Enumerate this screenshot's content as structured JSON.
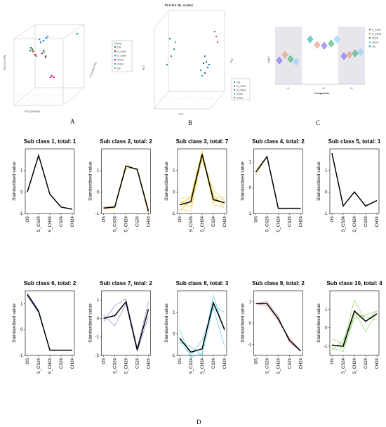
{
  "panel_labels": [
    "A",
    "B",
    "C",
    "D"
  ],
  "chart_data": [
    {
      "panel": "A",
      "type": "scatter",
      "x_axis_label": "PC1 (20.80%)",
      "y_axis_label": "PC3 (10.97%)",
      "z_axis_label": "PC2 (16.47%)",
      "legend_title": "Group",
      "legend": [
        "OS",
        "S_CS24",
        "S_CH24",
        "CS24",
        "CH24",
        "QC"
      ],
      "colors": [
        "#2e8b57",
        "#b22222",
        "#1e90ff",
        "#ff1493",
        "#20b2aa",
        "#999999"
      ]
    },
    {
      "panel": "B",
      "type": "scatter",
      "title": "PLS-DA 3D_scatter",
      "x_axis_label": "PC1",
      "y_axis_label": "PC3",
      "z_axis_label": "PC2",
      "legend": [
        "OS",
        "S_CS24",
        "S_CH24",
        "CS24",
        "CH24"
      ],
      "colors": [
        "#2e8b57",
        "#d9534f",
        "#1f77b4",
        "#17becf",
        "#555555"
      ]
    },
    {
      "panel": "C",
      "type": "scatter",
      "x_axis_label": "Components",
      "y_axis_label": "Log10",
      "categories": [
        "t1",
        "t2",
        "t3"
      ],
      "legend": [
        "S_CS24",
        "S_CH24",
        "CS24",
        "CH24",
        "OS"
      ],
      "colors": [
        "#7b68ee",
        "#e9967a",
        "#3cb371",
        "#87cefa",
        "#20b2aa"
      ]
    },
    {
      "panel": "D",
      "type": "line",
      "x": [
        "OS",
        "S_CS24",
        "S_CH24",
        "CS24",
        "CH24"
      ],
      "ylabel": "Standardised value",
      "subplots": [
        {
          "title": "Sub class 1, total: 1",
          "ylim": [
            -1,
            2
          ],
          "yticks": [
            -1,
            0,
            1
          ],
          "color": "#000000",
          "mean": [
            0,
            1.7,
            -0.1,
            -0.7,
            -0.8
          ],
          "members": []
        },
        {
          "title": "Sub class 2, total: 2",
          "ylim": [
            -1,
            2
          ],
          "yticks": [
            -1,
            0,
            1
          ],
          "color": "#e8b83a",
          "mean": [
            -0.75,
            -0.7,
            1.2,
            1.05,
            -0.9
          ],
          "members": [
            [
              -0.7,
              -0.65,
              1.3,
              1.0,
              -1.0
            ],
            [
              -0.8,
              -0.75,
              1.1,
              1.1,
              -0.8
            ]
          ]
        },
        {
          "title": "Sub class 3, total: 7",
          "ylim": [
            -1,
            2
          ],
          "yticks": [
            -1,
            0,
            1
          ],
          "color": "#e8c930",
          "mean": [
            -0.6,
            -0.45,
            1.75,
            -0.35,
            -0.5
          ],
          "members": [
            [
              -0.3,
              -0.2,
              1.9,
              -0.3,
              -0.2
            ],
            [
              -0.5,
              -0.3,
              1.8,
              -0.6,
              -0.7
            ],
            [
              -0.8,
              -0.9,
              1.6,
              0.1,
              -0.4
            ],
            [
              -0.7,
              -0.5,
              1.7,
              -0.2,
              -0.6
            ],
            [
              -0.4,
              -0.7,
              1.85,
              -0.5,
              -0.3
            ],
            [
              -0.9,
              -0.4,
              1.5,
              -0.1,
              -0.8
            ],
            [
              -0.6,
              -0.2,
              1.9,
              -0.4,
              -0.5
            ]
          ]
        },
        {
          "title": "Sub class 4, total: 2",
          "ylim": [
            -1,
            1.5
          ],
          "yticks": [
            -1,
            0,
            1
          ],
          "color": "#e8c930",
          "mean": [
            0.6,
            1.2,
            -0.8,
            -0.8,
            -0.8
          ],
          "members": [
            [
              0.5,
              1.2,
              -0.8,
              -0.8,
              -0.8
            ],
            [
              0.7,
              1.2,
              -0.8,
              -0.8,
              -0.8
            ]
          ]
        },
        {
          "title": "Sub class 5, total: 1",
          "ylim": [
            -1,
            2
          ],
          "yticks": [
            -1,
            0,
            1
          ],
          "color": "#000000",
          "mean": [
            1.8,
            -0.65,
            0,
            -0.65,
            -0.4
          ],
          "members": []
        },
        {
          "title": "Sub class 6, total: 2",
          "ylim": [
            -1,
            1.5
          ],
          "yticks": [
            -1,
            0,
            1
          ],
          "color": "#5b6bb5",
          "mean": [
            1.35,
            0.7,
            -0.8,
            -0.8,
            -0.8
          ],
          "members": [
            [
              1.4,
              0.75,
              -0.8,
              -0.8,
              -0.8
            ],
            [
              1.3,
              0.65,
              -0.8,
              -0.8,
              -0.8
            ]
          ]
        },
        {
          "title": "Sub class 7, total: 2",
          "ylim": [
            -2,
            1.5
          ],
          "yticks": [
            -2,
            -1,
            0,
            1
          ],
          "color": "#7a72c8",
          "mean": [
            0,
            0.15,
            0.9,
            -1.7,
            0.5
          ],
          "members": [
            [
              -0.2,
              0.7,
              1.05,
              -1.6,
              0.9
            ],
            [
              0.2,
              -0.4,
              0.8,
              -1.8,
              0.1
            ]
          ]
        },
        {
          "title": "Sub class 8, total: 3",
          "ylim": [
            -1,
            2
          ],
          "yticks": [
            -1,
            0,
            1
          ],
          "color": "#33c4e8",
          "mean": [
            -0.2,
            -0.85,
            -0.7,
            1.45,
            0.2
          ],
          "members": [
            [
              0.2,
              -1.1,
              -0.9,
              1.8,
              0.1
            ],
            [
              -0.4,
              -0.6,
              -1.0,
              1.3,
              1.0
            ],
            [
              -0.3,
              -1.0,
              -0.3,
              1.2,
              -0.6
            ]
          ]
        },
        {
          "title": "Sub class 9, total: 2",
          "ylim": [
            -1.5,
            1.5
          ],
          "yticks": [
            -1,
            0,
            1
          ],
          "color": "#c47a7a",
          "mean": [
            0.9,
            0.9,
            0.2,
            -0.8,
            -1.3
          ],
          "members": [
            [
              0.9,
              1.0,
              0.3,
              -0.9,
              -1.3
            ],
            [
              0.9,
              0.8,
              0.1,
              -0.7,
              -1.3
            ]
          ]
        },
        {
          "title": "Sub class 10, total: 4",
          "ylim": [
            -1.5,
            2
          ],
          "yticks": [
            -1,
            0,
            1
          ],
          "color": "#7fcf4a",
          "mean": [
            -0.95,
            -1.0,
            0.9,
            0.35,
            0.75
          ],
          "members": [
            [
              -0.6,
              -0.9,
              1.5,
              0.3,
              0.9
            ],
            [
              -1.1,
              -1.3,
              0.7,
              0.6,
              0.4
            ],
            [
              -1.2,
              -0.7,
              0.9,
              -0.2,
              0.8
            ],
            [
              -0.9,
              -1.1,
              0.5,
              0.7,
              0.9
            ]
          ]
        }
      ]
    }
  ]
}
